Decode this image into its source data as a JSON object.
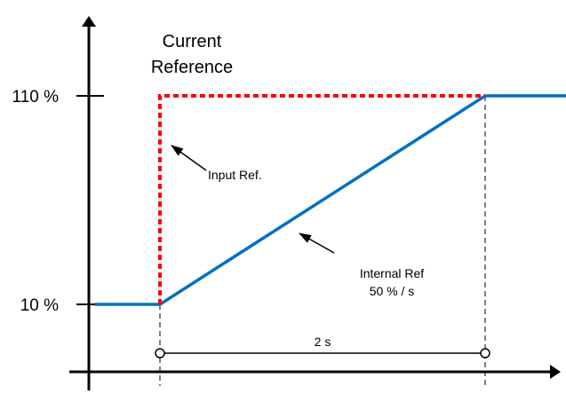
{
  "chart_data": {
    "type": "line",
    "title": "",
    "ylabel": [
      "Current",
      "Reference"
    ],
    "xlabel": "",
    "ylim": [
      0,
      125
    ],
    "xlim": [
      -1.0,
      3.1
    ],
    "y_ticks": [
      {
        "value": 10,
        "label": "10 %"
      },
      {
        "value": 110,
        "label": "110 %"
      }
    ],
    "series": [
      {
        "name": "Input Ref.",
        "style": "dashed",
        "color": "#ff0000",
        "points": [
          [
            0,
            10
          ],
          [
            0,
            110
          ],
          [
            2,
            110
          ]
        ]
      },
      {
        "name": "Internal Ref",
        "style": "solid",
        "color": "#0070c0",
        "points": [
          [
            -0.4,
            10
          ],
          [
            0,
            10
          ],
          [
            2,
            110
          ],
          [
            2.5,
            110
          ]
        ]
      }
    ],
    "annotations": {
      "input_ref": {
        "text": "Input Ref."
      },
      "internal_ref": {
        "line1": "Internal Ref",
        "line2": "50 % / s"
      },
      "duration": {
        "text": "2 s",
        "from": 0,
        "to": 2
      }
    }
  }
}
